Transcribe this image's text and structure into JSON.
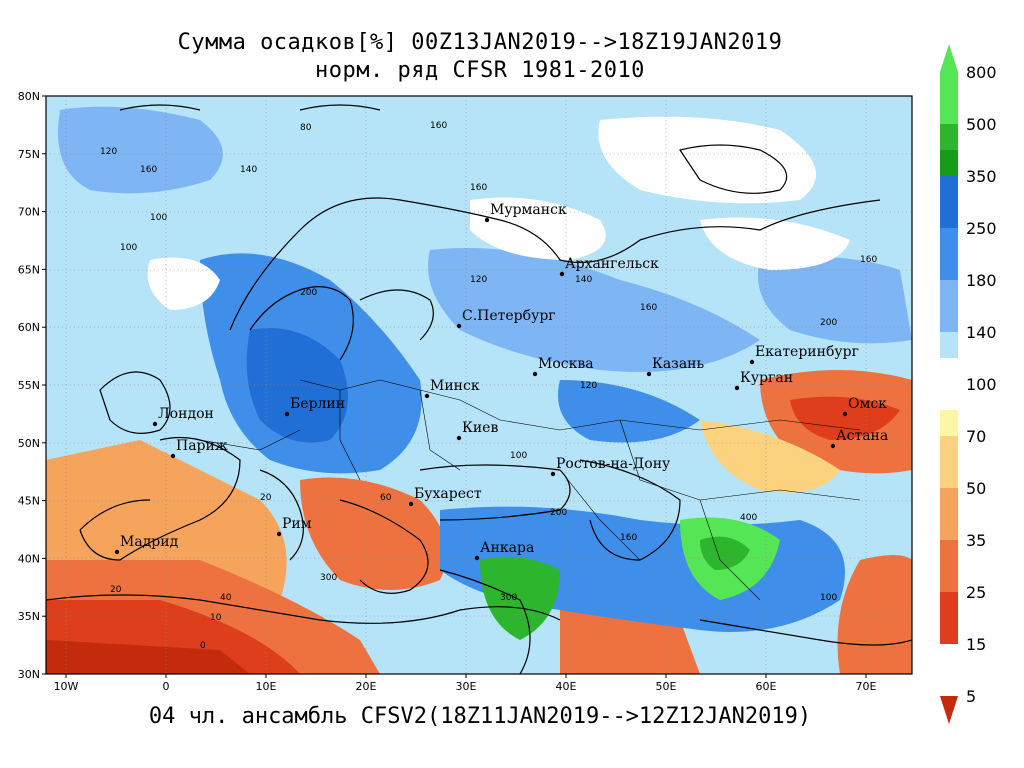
{
  "title_line1": "Сумма осадков[%] 00Z13JAN2019-->18Z19JAN2019",
  "title_line2": "норм. ряд CFSR 1981-2010",
  "footer": "04 чл. ансамбль CFSV2(18Z11JAN2019-->12Z12JAN2019)",
  "lat_labels": [
    "80N",
    "75N",
    "70N",
    "65N",
    "60N",
    "55N",
    "50N",
    "45N",
    "40N",
    "35N",
    "30N"
  ],
  "lon_labels": [
    "10W",
    "0",
    "10E",
    "20E",
    "30E",
    "40E",
    "50E",
    "60E",
    "70E"
  ],
  "cities": [
    {
      "name": "Мурманск"
    },
    {
      "name": "Архангельск"
    },
    {
      "name": "С.Петербург"
    },
    {
      "name": "Москва"
    },
    {
      "name": "Казань"
    },
    {
      "name": "Екатеринбург"
    },
    {
      "name": "Курган"
    },
    {
      "name": "Омск"
    },
    {
      "name": "Астана"
    },
    {
      "name": "Минск"
    },
    {
      "name": "Берлин"
    },
    {
      "name": "Лондон"
    },
    {
      "name": "Париж"
    },
    {
      "name": "Киев"
    },
    {
      "name": "Ростов-на-Дону"
    },
    {
      "name": "Бухарест"
    },
    {
      "name": "Рим"
    },
    {
      "name": "Мадрид"
    },
    {
      "name": "Анкара"
    }
  ],
  "colorbar": {
    "levels": [
      "800",
      "500",
      "350",
      "250",
      "180",
      "140",
      "100",
      "70",
      "50",
      "35",
      "25",
      "15",
      "5"
    ],
    "colors": [
      "#55e655",
      "#2db52d",
      "#179c17",
      "#1f6fd6",
      "#3f8eea",
      "#7eb6f5",
      "#b5e3f7",
      "#ffffff",
      "#fdf6a4",
      "#fbd27e",
      "#f6a35c",
      "#ee7240",
      "#de3e1c",
      "#c42a0c"
    ]
  },
  "contour_labels": [
    "160",
    "140",
    "120",
    "100",
    "80",
    "60",
    "200",
    "300",
    "400",
    "500",
    "40",
    "20",
    "10",
    "0"
  ]
}
